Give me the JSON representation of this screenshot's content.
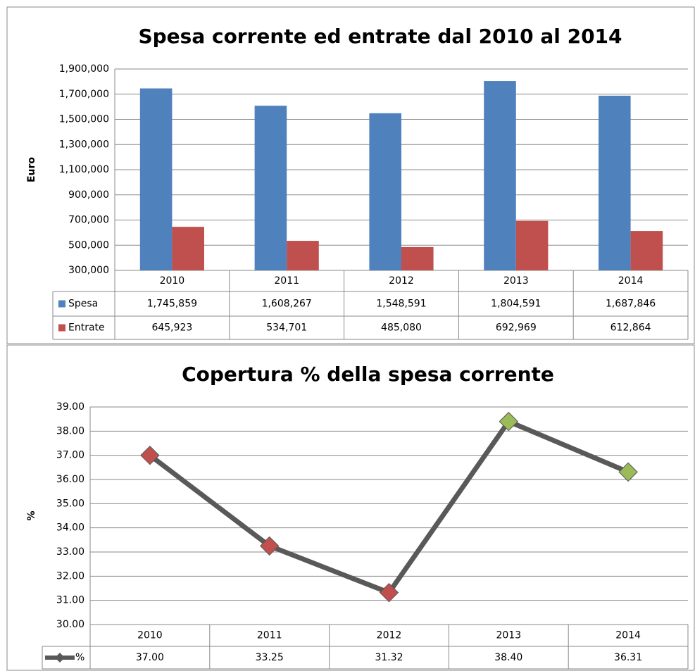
{
  "chart_data": [
    {
      "type": "bar",
      "title": "Spesa corrente ed entrate dal 2010 al 2014",
      "y_label": "Euro",
      "categories": [
        "2010",
        "2011",
        "2012",
        "2013",
        "2014"
      ],
      "series": [
        {
          "name": "Spesa",
          "color": "#4f81bd",
          "values": [
            1745859,
            1608267,
            1548591,
            1804591,
            1687846
          ],
          "value_labels": [
            "1,745,859",
            "1,608,267",
            "1,548,591",
            "1,804,591",
            "1,687,846"
          ]
        },
        {
          "name": "Entrate",
          "color": "#c0504d",
          "values": [
            645923,
            534701,
            485080,
            692969,
            612864
          ],
          "value_labels": [
            "645,923",
            "534,701",
            "485,080",
            "692,969",
            "612,864"
          ]
        }
      ],
      "ylim": [
        300000,
        1900000
      ],
      "yticks": [
        {
          "value": 300000,
          "label": "300,000"
        },
        {
          "value": 500000,
          "label": "500,000"
        },
        {
          "value": 700000,
          "label": "700,000"
        },
        {
          "value": 900000,
          "label": "900,000"
        },
        {
          "value": 1100000,
          "label": "1,100,000"
        },
        {
          "value": 1300000,
          "label": "1,300,000"
        },
        {
          "value": 1500000,
          "label": "1,500,000"
        },
        {
          "value": 1700000,
          "label": "1,700,000"
        },
        {
          "value": 1900000,
          "label": "1,900,000"
        }
      ],
      "grid": true
    },
    {
      "type": "line",
      "title": "Copertura % della spesa corrente",
      "y_label": "%",
      "categories": [
        "2010",
        "2011",
        "2012",
        "2013",
        "2014"
      ],
      "series": [
        {
          "name": "%",
          "color": "#595959",
          "values": [
            37.0,
            33.25,
            31.32,
            38.4,
            36.31
          ],
          "value_labels": [
            "37.00",
            "33.25",
            "31.32",
            "38.40",
            "36.31"
          ],
          "marker_colors": [
            "#c0504d",
            "#c0504d",
            "#c0504d",
            "#9bbb59",
            "#9bbb59"
          ]
        }
      ],
      "ylim": [
        30,
        39
      ],
      "yticks": [
        {
          "value": 30,
          "label": "30.00"
        },
        {
          "value": 31,
          "label": "31.00"
        },
        {
          "value": 32,
          "label": "32.00"
        },
        {
          "value": 33,
          "label": "33.00"
        },
        {
          "value": 34,
          "label": "34.00"
        },
        {
          "value": 35,
          "label": "35.00"
        },
        {
          "value": 36,
          "label": "36.00"
        },
        {
          "value": 37,
          "label": "37.00"
        },
        {
          "value": 38,
          "label": "38.00"
        },
        {
          "value": 39,
          "label": "39.00"
        }
      ],
      "grid": true
    }
  ]
}
